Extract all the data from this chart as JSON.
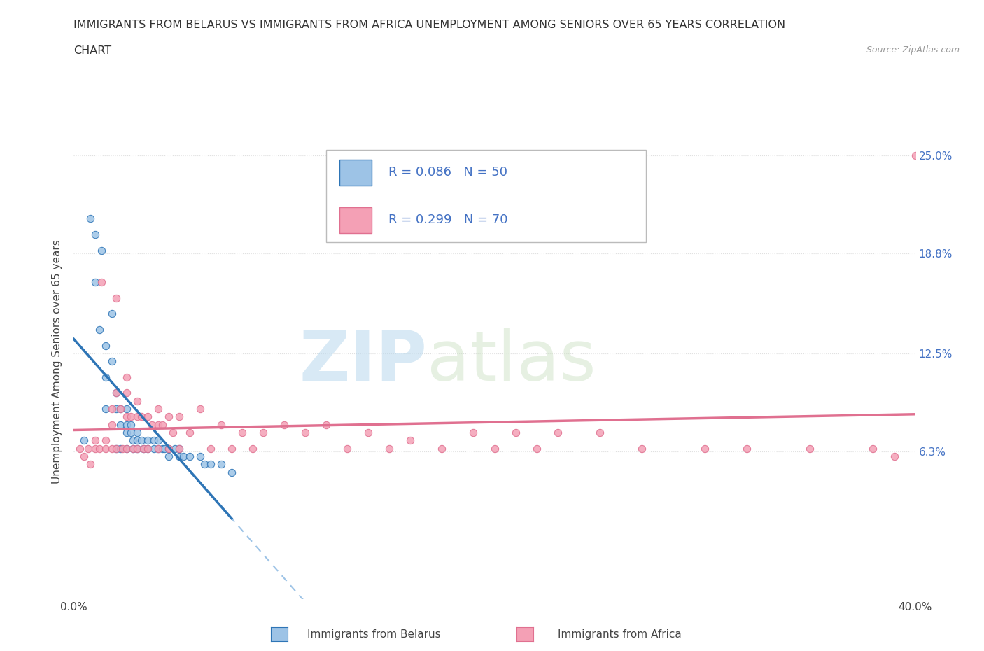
{
  "title_line1": "IMMIGRANTS FROM BELARUS VS IMMIGRANTS FROM AFRICA UNEMPLOYMENT AMONG SENIORS OVER 65 YEARS CORRELATION",
  "title_line2": "CHART",
  "source": "Source: ZipAtlas.com",
  "ylabel": "Unemployment Among Seniors over 65 years",
  "xlim": [
    0.0,
    0.4
  ],
  "ylim": [
    -0.03,
    0.27
  ],
  "ytick_values": [
    0.063,
    0.125,
    0.188,
    0.25
  ],
  "ytick_labels": [
    "6.3%",
    "12.5%",
    "18.8%",
    "25.0%"
  ],
  "xtick_values": [
    0.0,
    0.1,
    0.2,
    0.3,
    0.4
  ],
  "xtick_labels": [
    "0.0%",
    "",
    "",
    "",
    "40.0%"
  ],
  "belarus_color": "#9dc3e6",
  "africa_color": "#f4a0b5",
  "africa_line_color": "#e07090",
  "belarus_line_color": "#2e75b6",
  "belarus_dashed_color": "#9dc3e6",
  "background_color": "#ffffff",
  "grid_color": "#e0e0e0",
  "watermark_color": "#cce5f0",
  "belarus_R": 0.086,
  "belarus_N": 50,
  "africa_R": 0.299,
  "africa_N": 70,
  "legend_color": "#4472c4",
  "belarus_scatter_x": [
    0.005,
    0.008,
    0.01,
    0.01,
    0.012,
    0.013,
    0.015,
    0.015,
    0.015,
    0.018,
    0.018,
    0.02,
    0.02,
    0.02,
    0.022,
    0.022,
    0.022,
    0.025,
    0.025,
    0.025,
    0.025,
    0.027,
    0.027,
    0.028,
    0.028,
    0.03,
    0.03,
    0.03,
    0.032,
    0.033,
    0.035,
    0.035,
    0.038,
    0.038,
    0.04,
    0.04,
    0.042,
    0.043,
    0.045,
    0.045,
    0.048,
    0.05,
    0.05,
    0.052,
    0.055,
    0.06,
    0.062,
    0.065,
    0.07,
    0.075
  ],
  "belarus_scatter_y": [
    0.07,
    0.21,
    0.2,
    0.17,
    0.14,
    0.19,
    0.13,
    0.11,
    0.09,
    0.15,
    0.12,
    0.1,
    0.09,
    0.065,
    0.09,
    0.08,
    0.065,
    0.09,
    0.08,
    0.075,
    0.065,
    0.08,
    0.075,
    0.07,
    0.065,
    0.075,
    0.07,
    0.065,
    0.07,
    0.065,
    0.07,
    0.065,
    0.07,
    0.065,
    0.07,
    0.065,
    0.065,
    0.065,
    0.065,
    0.06,
    0.065,
    0.065,
    0.06,
    0.06,
    0.06,
    0.06,
    0.055,
    0.055,
    0.055,
    0.05
  ],
  "africa_scatter_x": [
    0.003,
    0.005,
    0.007,
    0.008,
    0.01,
    0.01,
    0.012,
    0.013,
    0.015,
    0.015,
    0.018,
    0.018,
    0.018,
    0.02,
    0.02,
    0.02,
    0.022,
    0.023,
    0.025,
    0.025,
    0.025,
    0.025,
    0.027,
    0.028,
    0.03,
    0.03,
    0.03,
    0.032,
    0.033,
    0.035,
    0.035,
    0.037,
    0.04,
    0.04,
    0.04,
    0.042,
    0.045,
    0.045,
    0.047,
    0.05,
    0.05,
    0.055,
    0.06,
    0.065,
    0.07,
    0.075,
    0.08,
    0.085,
    0.09,
    0.1,
    0.11,
    0.12,
    0.13,
    0.14,
    0.15,
    0.16,
    0.175,
    0.19,
    0.2,
    0.21,
    0.22,
    0.23,
    0.25,
    0.27,
    0.3,
    0.32,
    0.35,
    0.38,
    0.39,
    0.4
  ],
  "africa_scatter_y": [
    0.065,
    0.06,
    0.065,
    0.055,
    0.07,
    0.065,
    0.065,
    0.17,
    0.07,
    0.065,
    0.09,
    0.08,
    0.065,
    0.16,
    0.1,
    0.065,
    0.09,
    0.065,
    0.11,
    0.1,
    0.085,
    0.065,
    0.085,
    0.065,
    0.095,
    0.085,
    0.065,
    0.085,
    0.065,
    0.085,
    0.065,
    0.08,
    0.09,
    0.08,
    0.065,
    0.08,
    0.085,
    0.065,
    0.075,
    0.085,
    0.065,
    0.075,
    0.09,
    0.065,
    0.08,
    0.065,
    0.075,
    0.065,
    0.075,
    0.08,
    0.075,
    0.08,
    0.065,
    0.075,
    0.065,
    0.07,
    0.065,
    0.075,
    0.065,
    0.075,
    0.065,
    0.075,
    0.075,
    0.065,
    0.065,
    0.065,
    0.065,
    0.065,
    0.06,
    0.25
  ]
}
